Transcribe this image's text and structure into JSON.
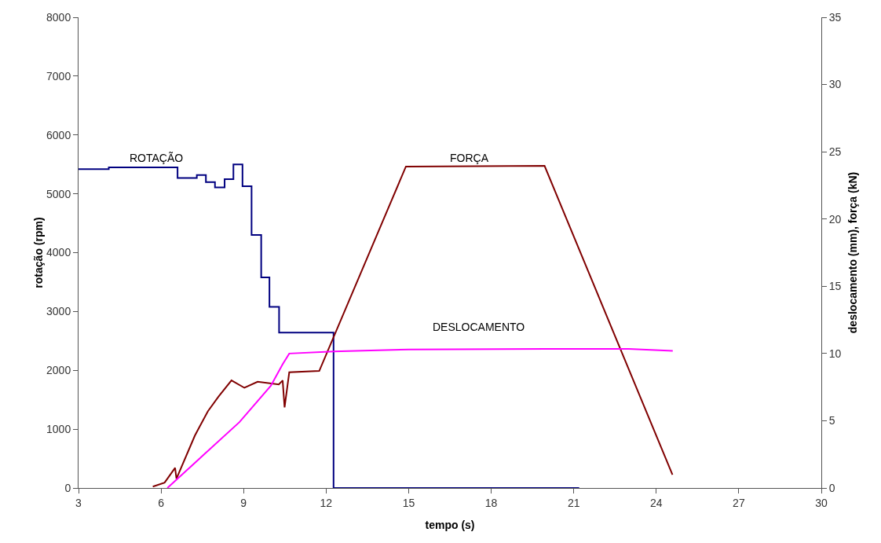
{
  "chart_data": {
    "type": "line",
    "xlabel": "tempo (s)",
    "ylabel": "rotação (rpm)",
    "y2label": "deslocamento (mm), força (kN)",
    "xlim": [
      3,
      30
    ],
    "xticks": [
      3,
      6,
      9,
      12,
      15,
      18,
      21,
      24,
      27,
      30
    ],
    "ylim": [
      0,
      8000
    ],
    "yticks": [
      0,
      1000,
      2000,
      3000,
      4000,
      5000,
      6000,
      7000,
      8000
    ],
    "y2lim": [
      0,
      35
    ],
    "y2ticks": [
      0,
      5,
      10,
      15,
      20,
      25,
      30,
      35
    ],
    "grid": false,
    "legend": false,
    "marker": "none",
    "line_style": "solid",
    "series": [
      {
        "name": "ROTAÇÃO",
        "color": "#000080",
        "type": "step",
        "x": [
          3,
          4.1,
          6.6,
          7.3,
          7.63,
          7.96,
          8.31,
          8.63,
          8.96,
          9.29,
          9.64,
          9.94,
          10.29,
          12.27,
          21.2
        ],
        "values": [
          5420,
          5450,
          5270,
          5320,
          5200,
          5110,
          5250,
          5500,
          5130,
          4300,
          3580,
          3080,
          2640,
          0,
          0
        ]
      },
      {
        "name": "FORÇA",
        "color": "#800000",
        "axis": "y2",
        "x": [
          5.7,
          6.13,
          6.51,
          6.56,
          7.23,
          7.7,
          8.09,
          8.56,
          9.03,
          9.51,
          10.28,
          10.42,
          10.49,
          10.66,
          11.75,
          14.9,
          19.94,
          24.59
        ],
        "values": [
          0.1,
          0.4,
          1.5,
          0.7,
          3.9,
          5.7,
          6.8,
          8.0,
          7.45,
          7.9,
          7.7,
          8.0,
          6.0,
          8.6,
          8.7,
          23.9,
          23.95,
          0.98
        ]
      },
      {
        "name": "DESLOCAMENTO",
        "color": "#ff00ff",
        "axis": "y2",
        "x": [
          6.23,
          8.85,
          9.99,
          10.42,
          10.66,
          12.27,
          15,
          20,
          23,
          24.6
        ],
        "values": [
          0,
          4.9,
          7.6,
          9.2,
          10.0,
          10.15,
          10.3,
          10.34,
          10.34,
          10.2
        ]
      }
    ]
  }
}
